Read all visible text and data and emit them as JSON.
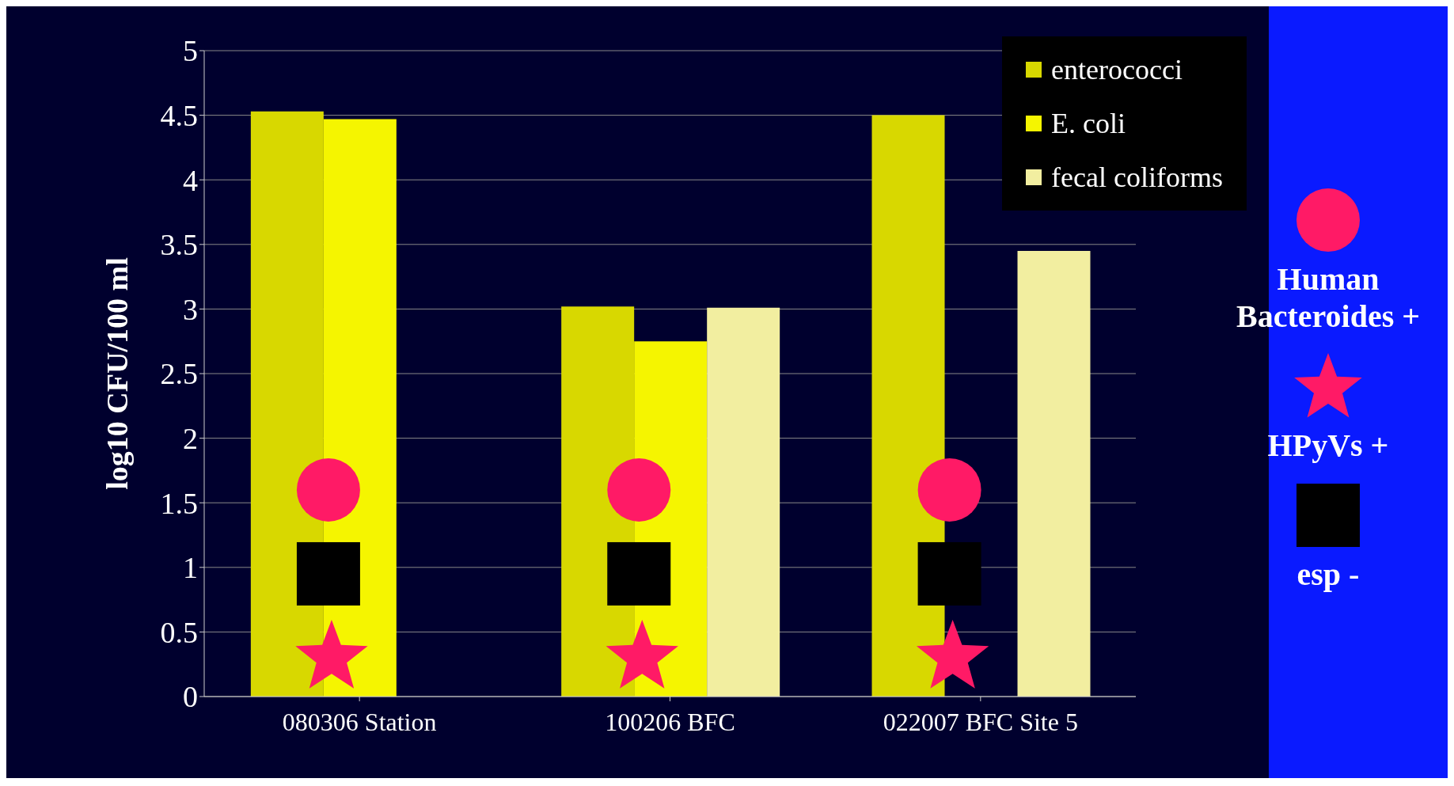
{
  "chart_data": {
    "type": "bar",
    "ylabel": "log10 CFU/100 ml",
    "categories": [
      "080306 Station",
      "100206 BFC",
      "022007 BFC Site 5"
    ],
    "series": [
      {
        "name": "enterococci",
        "color": "#d8d800",
        "values": [
          4.53,
          3.02,
          4.5
        ]
      },
      {
        "name": "E. coli",
        "color": "#f5f500",
        "values": [
          4.47,
          2.75,
          null
        ]
      },
      {
        "name": "fecal coliforms",
        "color": "#f2eea0",
        "values": [
          null,
          3.01,
          3.45
        ]
      }
    ],
    "ylim": [
      0,
      5
    ],
    "yticks": [
      0,
      0.5,
      1,
      1.5,
      2,
      2.5,
      3,
      3.5,
      4,
      4.5,
      5
    ],
    "grid": "y",
    "legend": "top right",
    "annotations": [
      "Human Bacteroides +",
      "HPyVs +",
      "esp -"
    ]
  }
}
